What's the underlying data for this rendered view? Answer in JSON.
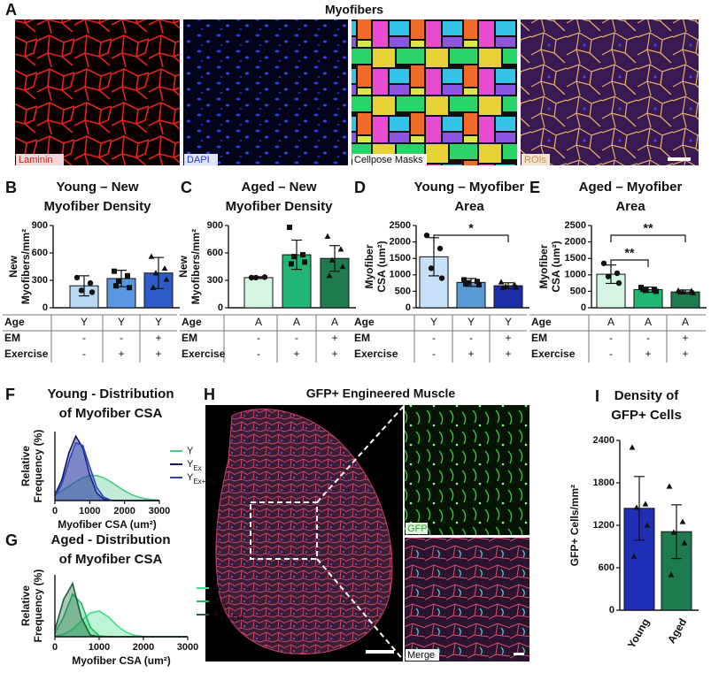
{
  "figure": {
    "A": {
      "panel": "A",
      "title": "Myofibers",
      "captions": [
        "Laminin",
        "DAPI",
        "Cellpose Masks",
        "ROIs"
      ]
    },
    "H": {
      "panel": "H",
      "title": "GFP+ Engineered Muscle",
      "captions": [
        "GFP",
        "Merge"
      ]
    }
  },
  "chart_data": [
    {
      "panel": "B",
      "type": "bar",
      "title": [
        "Young – New",
        "Myofiber Density"
      ],
      "ylabel": [
        "New",
        "Myofibers/mm²"
      ],
      "ylim": [
        0,
        900
      ],
      "yticks": [
        0,
        300,
        600,
        900
      ],
      "values": [
        240,
        320,
        380
      ],
      "errors": [
        110,
        90,
        170
      ],
      "colors": [
        "#b8d8f4",
        "#5b97e0",
        "#2f5bc8"
      ],
      "markers": [
        "circle",
        "square",
        "triangle"
      ],
      "points": [
        [
          330,
          270,
          190,
          170
        ],
        [
          400,
          350,
          290,
          220,
          240
        ],
        [
          560,
          430,
          380,
          310,
          220
        ]
      ],
      "table": [
        {
          "label": "Age",
          "cells": [
            "Y",
            "Y",
            "Y"
          ]
        },
        {
          "label": "EM",
          "cells": [
            "-",
            "-",
            "+"
          ]
        },
        {
          "label": "Exercise",
          "cells": [
            "-",
            "+",
            "+"
          ]
        }
      ],
      "significance": []
    },
    {
      "panel": "C",
      "type": "bar",
      "title": [
        "Aged – New",
        "Myofiber Density"
      ],
      "ylabel": [
        "New",
        "Myofibers/mm²"
      ],
      "ylim": [
        0,
        900
      ],
      "yticks": [
        0,
        300,
        600,
        900
      ],
      "values": [
        330,
        580,
        540
      ],
      "errors": [
        10,
        160,
        140
      ],
      "colors": [
        "#d4f5e2",
        "#22b573",
        "#1f7a4f"
      ],
      "markers": [
        "circle",
        "square",
        "triangle"
      ],
      "points": [
        [
          330,
          335,
          330
        ],
        [
          880,
          580,
          560,
          500,
          480
        ],
        [
          780,
          640,
          520,
          450,
          350
        ]
      ],
      "table": [
        {
          "label": "Age",
          "cells": [
            "A",
            "A",
            "A"
          ]
        },
        {
          "label": "EM",
          "cells": [
            "-",
            "-",
            "+"
          ]
        },
        {
          "label": "Exercise",
          "cells": [
            "-",
            "+",
            "+"
          ]
        }
      ],
      "significance": []
    },
    {
      "panel": "D",
      "type": "bar",
      "title": [
        "Young – Myofiber",
        "Area"
      ],
      "ylabel": [
        "Myofiber",
        "CSA (um²)"
      ],
      "ylim": [
        0,
        2500
      ],
      "yticks": [
        0,
        500,
        1000,
        1500,
        2000,
        2500
      ],
      "values": [
        1550,
        770,
        670
      ],
      "errors": [
        580,
        120,
        90
      ],
      "colors": [
        "#c6e0f7",
        "#5b9bd5",
        "#1a2ea8"
      ],
      "markers": [
        "circle",
        "square",
        "triangle"
      ],
      "points": [
        [
          2200,
          1800,
          1200,
          900
        ],
        [
          850,
          800,
          760,
          700,
          720
        ],
        [
          780,
          700,
          650,
          620,
          600
        ]
      ],
      "table": [
        {
          "label": "Age",
          "cells": [
            "Y",
            "Y",
            "Y"
          ]
        },
        {
          "label": "EM",
          "cells": [
            "-",
            "-",
            "+"
          ]
        },
        {
          "label": "Exercise",
          "cells": [
            "-",
            "+",
            "+"
          ]
        }
      ],
      "significance": [
        "*"
      ]
    },
    {
      "panel": "E",
      "type": "bar",
      "title": [
        "Aged – Myofiber",
        "Area"
      ],
      "ylabel": [
        "Myofiber",
        "CSA (um²)"
      ],
      "ylim": [
        0,
        2500
      ],
      "yticks": [
        0,
        500,
        1000,
        1500,
        2000,
        2500
      ],
      "values": [
        1020,
        550,
        480
      ],
      "errors": [
        280,
        80,
        60
      ],
      "colors": [
        "#d4f5e2",
        "#22b573",
        "#1f7a4f"
      ],
      "markers": [
        "circle",
        "square",
        "triangle"
      ],
      "points": [
        [
          1350,
          1050,
          950,
          750
        ],
        [
          620,
          560,
          530,
          500,
          560
        ],
        [
          520,
          510,
          480,
          450,
          470
        ]
      ],
      "table": [
        {
          "label": "Age",
          "cells": [
            "A",
            "A",
            "A"
          ]
        },
        {
          "label": "EM",
          "cells": [
            "-",
            "-",
            "+"
          ]
        },
        {
          "label": "Exercise",
          "cells": [
            "-",
            "+",
            "+"
          ]
        }
      ],
      "significance": [
        "**",
        "**"
      ]
    },
    {
      "panel": "F",
      "type": "area",
      "title": [
        "Young - Distribution",
        "of Myofiber CSA"
      ],
      "ylabel": [
        "Relative",
        "Frequency (%)"
      ],
      "xlabel": "Myofiber CSA (um²)",
      "x": [
        0,
        200,
        400,
        600,
        800,
        1000,
        1200,
        1400,
        1600,
        1800,
        2000,
        2200,
        2400,
        2600,
        2800,
        3000
      ],
      "xlim": [
        0,
        3000
      ],
      "xticks": [
        0,
        1000,
        2000,
        3000
      ],
      "ylim": [
        0,
        30
      ],
      "series": [
        {
          "name": "Y",
          "color": "#4fc98a",
          "values": [
            2.6,
            4.2,
            6.2,
            8.2,
            9.9,
            10.9,
            10.9,
            9.9,
            8.2,
            6.2,
            4.2,
            2.6,
            1.5,
            0.8,
            0.4,
            0.2
          ]
        },
        {
          "name": "Y",
          "subscript": "Ex",
          "color": "#141466",
          "values": [
            2.4,
            9.1,
            20.6,
            28,
            22.8,
            11.2,
            3.3,
            0.6,
            0.1,
            0,
            0,
            0,
            0,
            0,
            0,
            0
          ]
        },
        {
          "name": "Y",
          "subscript": "Ex+EM",
          "color": "#2b46c4",
          "values": [
            2.0,
            7.2,
            16.8,
            25.1,
            24.0,
            14.7,
            5.8,
            1.5,
            0.2,
            0,
            0,
            0,
            0,
            0,
            0,
            0
          ]
        }
      ]
    },
    {
      "panel": "G",
      "type": "area",
      "title": [
        "Aged - Distribution",
        "of Myofiber CSA"
      ],
      "ylabel": [
        "Relative",
        "Frequency (%)"
      ],
      "xlabel": "Myofiber CSA (um²)",
      "x": [
        0,
        200,
        400,
        600,
        800,
        1000,
        1200,
        1400,
        1600,
        1800,
        2000,
        2200,
        2400,
        2600,
        2800,
        3000
      ],
      "xlim": [
        0,
        3000
      ],
      "xticks": [
        0,
        1000,
        2000,
        3000
      ],
      "ylim": [
        0,
        38
      ],
      "series": [
        {
          "name": "A",
          "color": "#3fe08a",
          "values": [
            0.4,
            1.6,
            4.6,
            9.7,
            14.6,
            15.8,
            12.4,
            7.0,
            2.9,
            0.8,
            0.2,
            0,
            0,
            0,
            0,
            0
          ]
        },
        {
          "name": "A",
          "subscript": "Ex",
          "color": "#22b85f",
          "values": [
            2.2,
            12.4,
            26.2,
            20.4,
            5.8,
            0.6,
            0.1,
            0,
            0,
            0,
            0,
            0,
            0,
            0,
            0,
            0
          ]
        },
        {
          "name": "A",
          "subscript": "Ex+EM",
          "color": "#17603d",
          "values": [
            4.1,
            23.0,
            32.6,
            11.5,
            1.0,
            0,
            0,
            0,
            0,
            0,
            0,
            0,
            0,
            0,
            0,
            0
          ]
        }
      ]
    },
    {
      "panel": "I",
      "type": "bar",
      "title": [
        "Density of",
        "GFP+ Cells"
      ],
      "ylabel": [
        "GFP+ Cells/mm²"
      ],
      "categories": [
        "Young",
        "Aged"
      ],
      "ylim": [
        0,
        2400
      ],
      "yticks": [
        0,
        600,
        1200,
        1800,
        2400
      ],
      "values": [
        1440,
        1110
      ],
      "errors": [
        450,
        380
      ],
      "colors": [
        "#1f2fb5",
        "#1e7a4f"
      ],
      "markers": [
        "triangle",
        "triangle"
      ],
      "points": [
        [
          2300,
          1500,
          1450,
          1200,
          760
        ],
        [
          1750,
          1250,
          1100,
          950,
          500
        ]
      ],
      "significance": []
    }
  ]
}
